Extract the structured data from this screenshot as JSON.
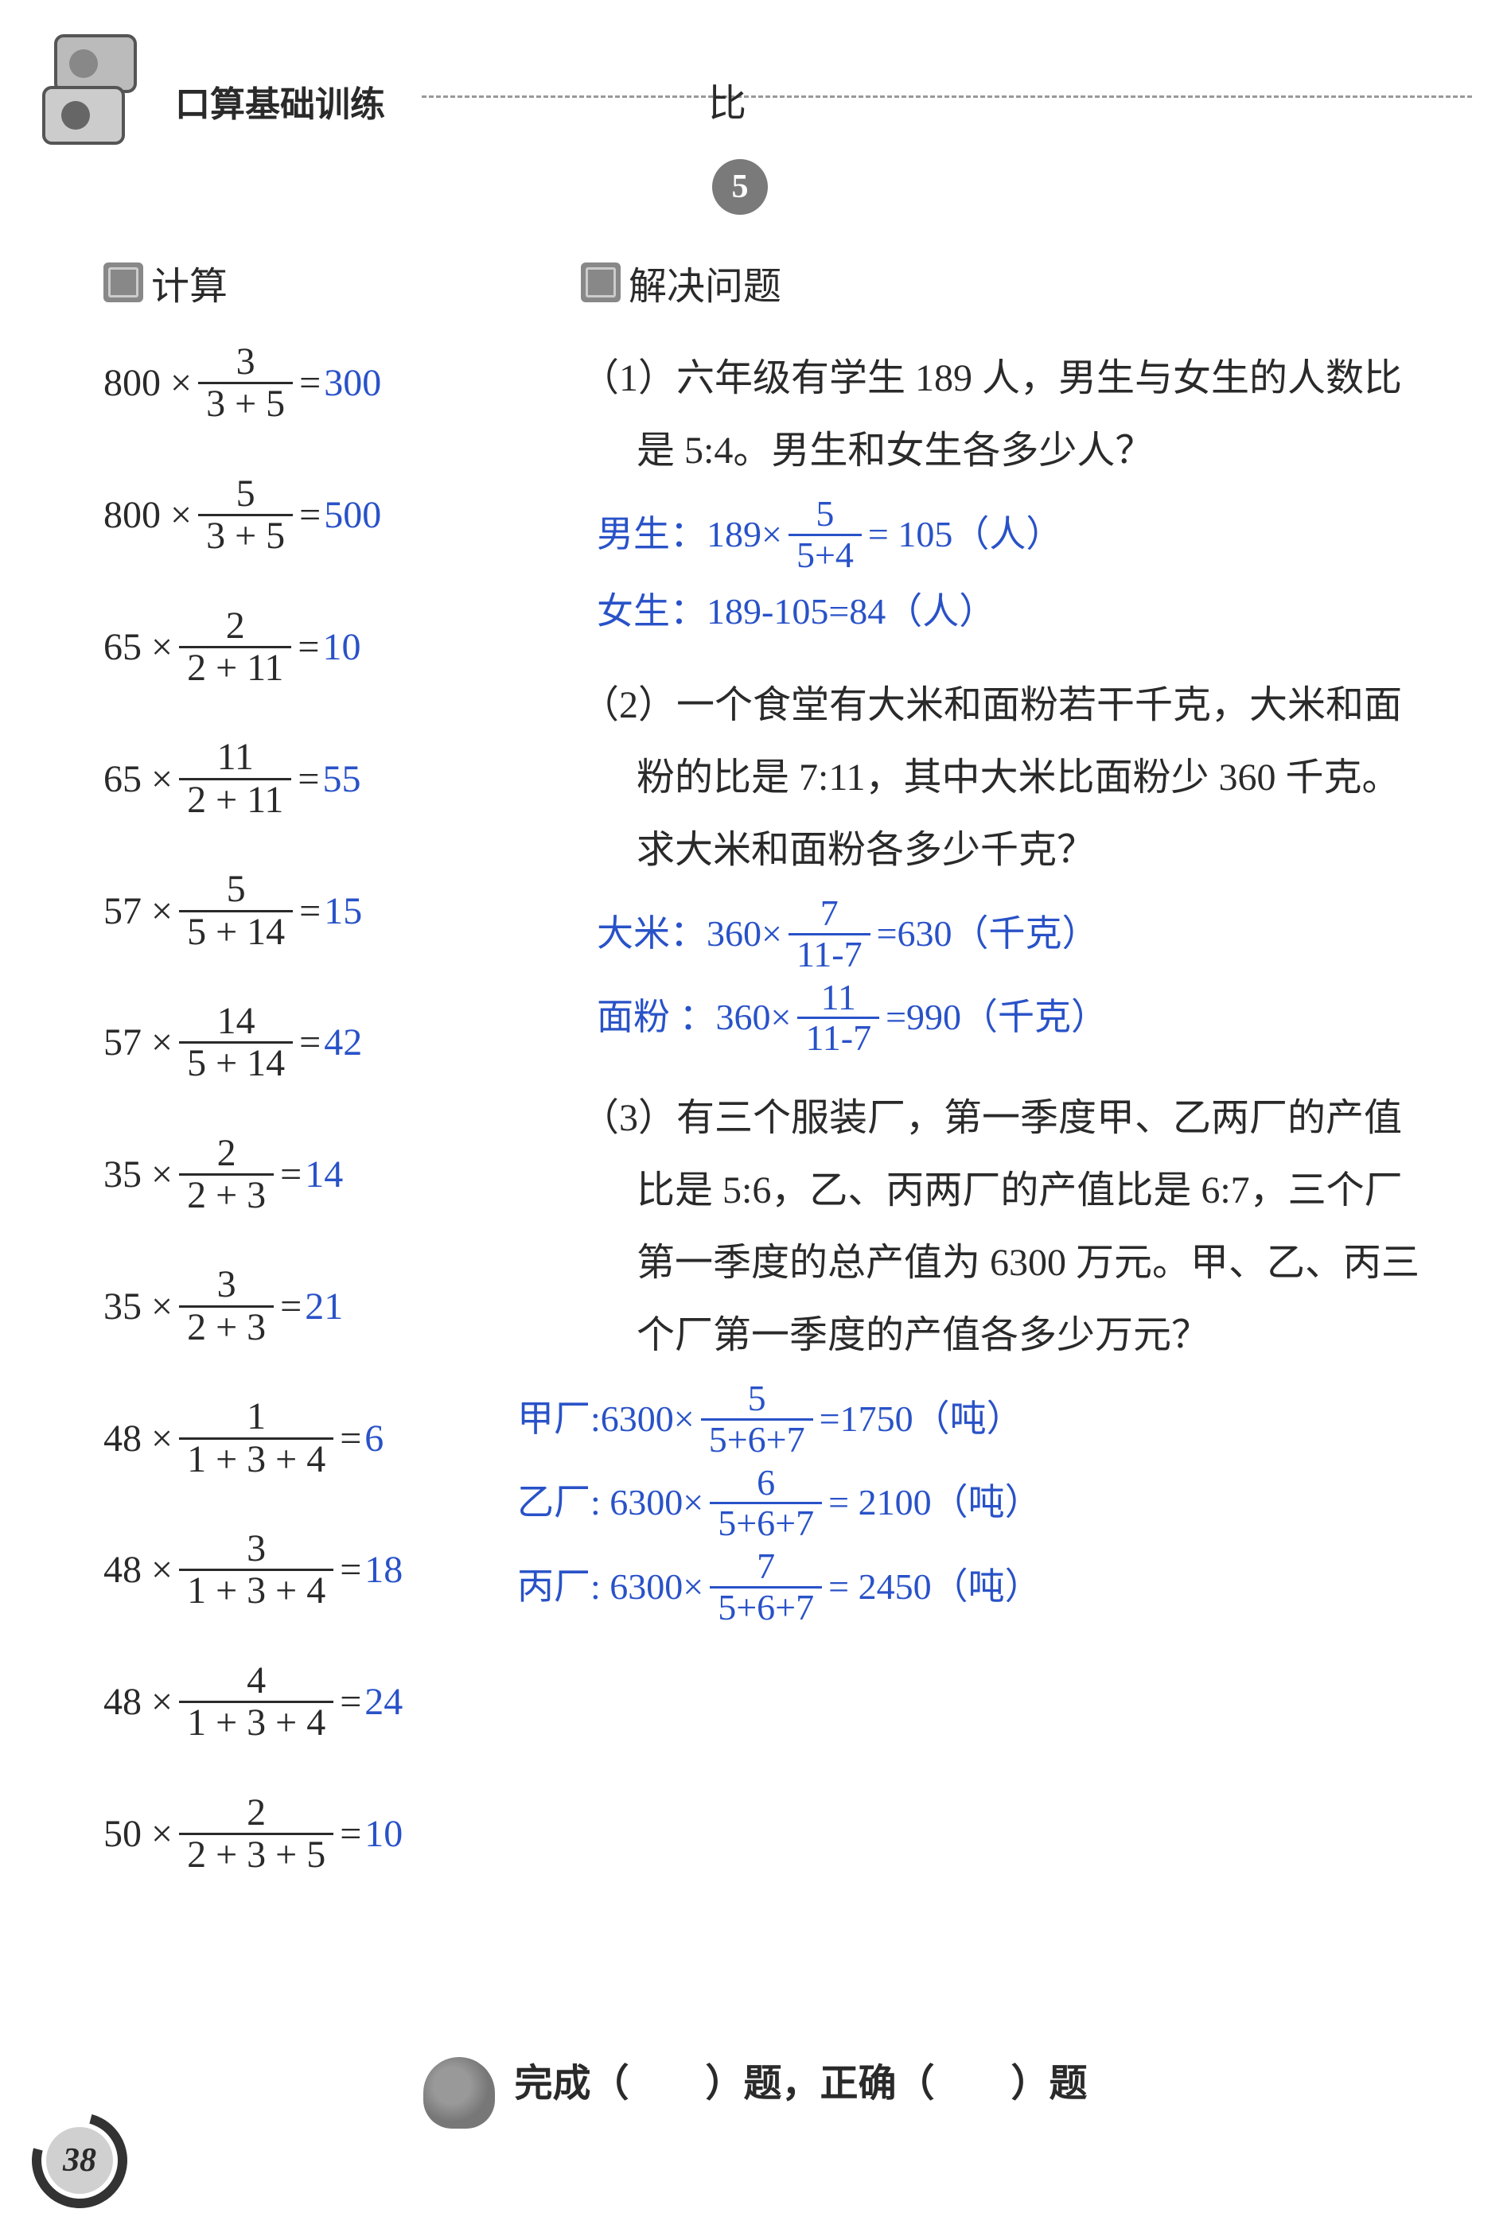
{
  "colors": {
    "text": "#2a2a2a",
    "answer": "#2952c8",
    "badge_bg": "#7a7a7a",
    "dash": "#9a9a9a"
  },
  "typography": {
    "body_fontsize_pt": 36,
    "title_fontsize_pt": 33,
    "family": "SimSun / 宋体"
  },
  "header": {
    "book_title": "口算基础训练",
    "chapter_title": "比",
    "badge": "5"
  },
  "sections": {
    "calc": "计算",
    "solve": "解决问题"
  },
  "equations": [
    {
      "a": "800",
      "num": "3",
      "den": "3 + 5",
      "ans": "300"
    },
    {
      "a": "800",
      "num": "5",
      "den": "3 + 5",
      "ans": "500"
    },
    {
      "a": "65",
      "num": "2",
      "den": "2 + 11",
      "ans": "10"
    },
    {
      "a": "65",
      "num": "11",
      "den": "2 + 11",
      "ans": "55"
    },
    {
      "a": "57",
      "num": "5",
      "den": "5 + 14",
      "ans": "15"
    },
    {
      "a": "57",
      "num": "14",
      "den": "5 + 14",
      "ans": "42"
    },
    {
      "a": "35",
      "num": "2",
      "den": "2 + 3",
      "ans": "14"
    },
    {
      "a": "35",
      "num": "3",
      "den": "2 + 3",
      "ans": "21"
    },
    {
      "a": "48",
      "num": "1",
      "den": "1 + 3 + 4",
      "ans": "6"
    },
    {
      "a": "48",
      "num": "3",
      "den": "1 + 3 + 4",
      "ans": "18"
    },
    {
      "a": "48",
      "num": "4",
      "den": "1 + 3 + 4",
      "ans": "24"
    },
    {
      "a": "50",
      "num": "2",
      "den": "2 + 3 + 5",
      "ans": "10"
    }
  ],
  "problems": {
    "p1": {
      "num": "（1）",
      "text": "六年级有学生 189 人，男生与女生的人数比是 5:4。男生和女生各多少人？",
      "sol": {
        "l1_label": "男生：189×",
        "l1_num": "5",
        "l1_den": "5+4",
        "l1_tail": "= 105（人）",
        "l2": "女生：189-105=84（人）"
      }
    },
    "p2": {
      "num": "（2）",
      "text": "一个食堂有大米和面粉若干千克，大米和面粉的比是 7:11，其中大米比面粉少 360 千克。求大米和面粉各多少千克？",
      "sol": {
        "l1_label": "大米：360×",
        "l1_num": "7",
        "l1_den": "11-7",
        "l1_tail": "=630（千克）",
        "l2_label": "面粉 ：360×",
        "l2_num": "11",
        "l2_den": "11-7",
        "l2_tail": "=990（千克）"
      }
    },
    "p3": {
      "num": "（3）",
      "text": "有三个服装厂，第一季度甲、乙两厂的产值比是 5:6，乙、丙两厂的产值比是 6:7，三个厂第一季度的总产值为 6300 万元。甲、乙、丙三个厂第一季度的产值各多少万元？",
      "sol": {
        "l1_label": "甲厂:6300×",
        "l1_num": "5",
        "l1_den": "5+6+7",
        "l1_tail": "=1750（吨）",
        "l2_label": "乙厂: 6300×",
        "l2_num": "6",
        "l2_den": "5+6+7",
        "l2_tail": "= 2100（吨）",
        "l3_label": "丙厂: 6300×",
        "l3_num": "7",
        "l3_den": "5+6+7",
        "l3_tail": "= 2450（吨）"
      }
    }
  },
  "footer": {
    "text": "完成（　　）题，正确（　　）题"
  },
  "page_number": "38"
}
